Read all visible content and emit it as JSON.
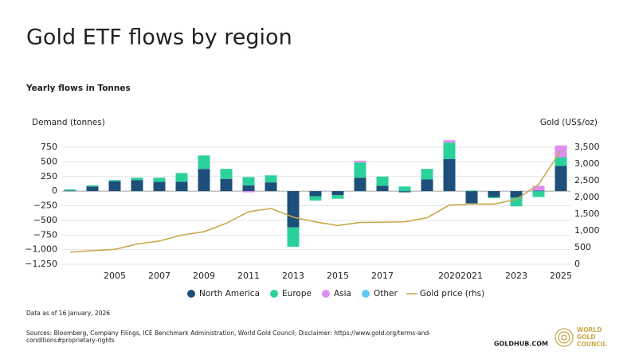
{
  "chart_data": {
    "type": "bar",
    "title": "Gold ETF flows by region",
    "subtitle": "Yearly flows in Tonnes",
    "y_label": "Demand (tonnes)",
    "y2_label": "Gold (US$/oz)",
    "categories": [
      null,
      null,
      "2005",
      null,
      "2007",
      null,
      "2009",
      null,
      "2011",
      null,
      "2013",
      null,
      "2015",
      null,
      "2017",
      null,
      null,
      "2020",
      "2021",
      null,
      "2023",
      null,
      "2025"
    ],
    "series": [
      {
        "name": "North America",
        "color": "#1d4f7a",
        "values": [
          10,
          80,
          170,
          190,
          160,
          160,
          380,
          210,
          100,
          150,
          -620,
          -90,
          -70,
          230,
          90,
          -20,
          200,
          550,
          -210,
          -100,
          -110,
          10,
          430
        ]
      },
      {
        "name": "Europe",
        "color": "#2bd19c",
        "values": [
          20,
          20,
          20,
          40,
          70,
          150,
          230,
          170,
          140,
          120,
          -330,
          -70,
          -60,
          260,
          160,
          80,
          180,
          280,
          10,
          -20,
          -150,
          -100,
          150
        ]
      },
      {
        "name": "Asia",
        "color": "#dc8ff0",
        "values": [
          0,
          0,
          0,
          0,
          0,
          0,
          0,
          0,
          -20,
          0,
          0,
          0,
          0,
          30,
          0,
          0,
          0,
          40,
          0,
          0,
          0,
          80,
          200
        ]
      },
      {
        "name": "Other",
        "color": "#5ec8f2",
        "values": [
          0,
          0,
          0,
          0,
          0,
          0,
          0,
          0,
          0,
          0,
          0,
          0,
          0,
          0,
          0,
          0,
          0,
          0,
          0,
          0,
          0,
          0,
          0
        ]
      },
      {
        "name": "Gold price (rhs)",
        "color": "#c9a94f",
        "type": "line",
        "axis": "y2",
        "values": [
          363,
          409,
          445,
          604,
          695,
          872,
          972,
          1225,
          1572,
          1669,
          1411,
          1266,
          1160,
          1251,
          1257,
          1269,
          1393,
          1770,
          1799,
          1800,
          1941,
          2386,
          3400
        ]
      }
    ],
    "ylim": [
      -1250,
      900
    ],
    "yticks": [
      {
        "value": -1250,
        "label": "−1,250"
      },
      {
        "value": -1000,
        "label": "−1,000"
      },
      {
        "value": -750,
        "label": "−750"
      },
      {
        "value": -500,
        "label": "−500"
      },
      {
        "value": -250,
        "label": "−250"
      },
      0,
      250,
      500,
      750
    ],
    "y2lim": [
      0,
      3762.5
    ],
    "y2ticks": [
      0,
      500,
      {
        "value": 1000,
        "label": "1,000"
      },
      {
        "value": 1500,
        "label": "1,500"
      },
      {
        "value": 2000,
        "label": "2,000"
      },
      {
        "value": 2500,
        "label": "2,500"
      },
      {
        "value": 3000,
        "label": "3,000"
      },
      {
        "value": 3500,
        "label": "3,500"
      }
    ],
    "grid": true,
    "legend": "bottom",
    "note": "Data as of 16 January, 2026",
    "sources": "Sources: Bloomberg, Company Filings, ICE Benchmark Administration, World Gold Council; Disclaimer: https://www.gold.org/terms-and-conditions#proprietary-rights",
    "brand": "GOLDHUB.COM",
    "logo_lines": [
      "WORLD",
      "GOLD",
      "COUNCIL"
    ]
  }
}
